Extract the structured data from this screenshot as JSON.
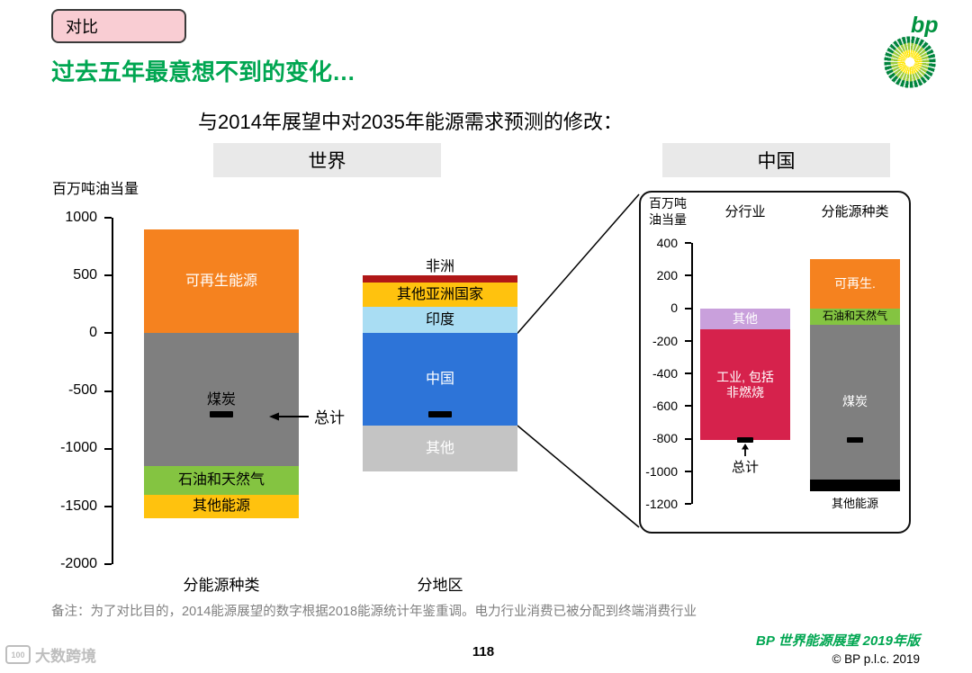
{
  "badge": {
    "label": "对比"
  },
  "title": "过去五年最意想不到的变化…",
  "logo": {
    "text": "bp"
  },
  "subtitle": "与2014年展望中对2035年能源需求预测的修改：",
  "panels": {
    "world": "世界",
    "china": "中国"
  },
  "note": {
    "text": "备注：为了对比目的，2014能源展望的数字根据2018能源统计年鉴重调。电力行业消费已被分配到终端消费行业"
  },
  "footer": {
    "page": "118",
    "outlook": "BP 世界能源展望 2019年版",
    "copyright": "© BP p.l.c. 2019"
  },
  "watermark": {
    "icon": "100",
    "text": "大数跨境"
  },
  "chart_data": [
    {
      "id": "world",
      "type": "bar",
      "stacked": true,
      "panel": "世界",
      "unit_label": "百万吨油当量",
      "ylim": [
        -2000,
        1000
      ],
      "yticks": [
        1000,
        500,
        0,
        -500,
        -1000,
        -1500,
        -2000
      ],
      "bars": [
        {
          "category": "分能源种类",
          "total": -700,
          "total_annotation": {
            "label": "总计",
            "style": "arrow-left"
          },
          "segments": [
            {
              "label": "可再生能源",
              "value": 900,
              "color": "#F5821F",
              "text_color": "#FFFFFF"
            },
            {
              "label": "煤炭",
              "value": -1150,
              "color": "#7F7F7F",
              "text_color": "#000000"
            },
            {
              "label": "石油和天然气",
              "value": -250,
              "color": "#84C441",
              "text_color": "#000000"
            },
            {
              "label": "其他能源",
              "value": -200,
              "color": "#FFC20E",
              "text_color": "#000000"
            }
          ]
        },
        {
          "category": "分地区",
          "total": -700,
          "segments": [
            {
              "label": "非洲",
              "value": 60,
              "color": "#B01717",
              "text_color": "#000000",
              "label_position": "above"
            },
            {
              "label": "其他亚洲国家",
              "value": 210,
              "color": "#FFC20E",
              "text_color": "#000000"
            },
            {
              "label": "印度",
              "value": 230,
              "color": "#A9DDF3",
              "text_color": "#000000"
            },
            {
              "label": "中国",
              "value": -800,
              "color": "#2D74D8",
              "text_color": "#FFFFFF"
            },
            {
              "label": "其他",
              "value": -400,
              "color": "#C4C4C4",
              "text_color": "#FFFFFF"
            }
          ]
        }
      ]
    },
    {
      "id": "china",
      "type": "bar",
      "stacked": true,
      "panel": "中国",
      "unit_label": [
        "百万吨",
        "油当量"
      ],
      "ylim": [
        -1200,
        400
      ],
      "yticks": [
        400,
        200,
        0,
        -200,
        -400,
        -600,
        -800,
        -1000,
        -1200
      ],
      "bars": [
        {
          "category": "分行业",
          "total": -810,
          "total_annotation": {
            "label": "总计",
            "style": "below-arrow-up"
          },
          "segments": [
            {
              "label": "其他",
              "value": -130,
              "color": "#C9A0DC",
              "text_color": "#FFFFFF"
            },
            {
              "label": "工业, 包括\n非燃烧",
              "value": -680,
              "color": "#D6224C",
              "text_color": "#FFFFFF"
            }
          ]
        },
        {
          "category": "分能源种类",
          "total": -810,
          "segments": [
            {
              "label": "可再生.",
              "value": 300,
              "color": "#F5821F",
              "text_color": "#FFFFFF"
            },
            {
              "label": "石油和天然气",
              "value": -100,
              "color": "#84C441",
              "text_color": "#000000"
            },
            {
              "label": "煤炭",
              "value": -950,
              "color": "#7F7F7F",
              "text_color": "#FFFFFF"
            },
            {
              "label": "其他能源",
              "value": -70,
              "color": "#000000",
              "text_color": "#000000",
              "label_position": "below"
            }
          ]
        }
      ]
    }
  ]
}
